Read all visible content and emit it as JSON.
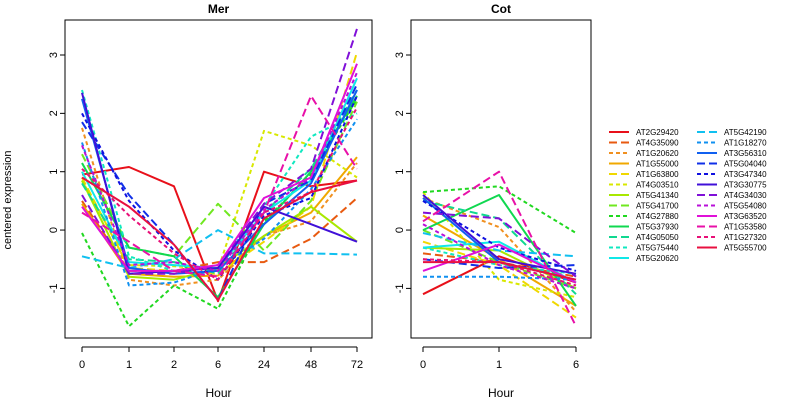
{
  "ylabel": "centered expression",
  "chart_data": [
    {
      "type": "line",
      "title": "Mer",
      "xlabel": "Hour",
      "ylabel": "centered expression",
      "categories": [
        "0",
        "1",
        "2",
        "6",
        "24",
        "48",
        "72"
      ],
      "ylim": [
        -1.85,
        3.6
      ],
      "yticks": [
        -1,
        0,
        1,
        2,
        3
      ],
      "series": [
        {
          "name": "AT2G29420",
          "values": [
            0.95,
            1.08,
            0.75,
            -1.22,
            1.0,
            0.75,
            0.85
          ]
        },
        {
          "name": "AT4G35090",
          "values": [
            0.5,
            -0.7,
            -0.7,
            -0.55,
            -0.55,
            -0.15,
            0.55
          ]
        },
        {
          "name": "AT1G20620",
          "values": [
            1.75,
            -0.85,
            -0.95,
            -0.85,
            -0.1,
            0.15,
            1.15
          ]
        },
        {
          "name": "AT1G55000",
          "values": [
            0.45,
            -0.75,
            -0.8,
            -0.78,
            -0.1,
            0.3,
            1.25
          ]
        },
        {
          "name": "AT1G63800",
          "values": [
            0.9,
            -0.65,
            -0.7,
            -0.75,
            -0.2,
            0.4,
            3.05
          ]
        },
        {
          "name": "AT4G03510",
          "values": [
            0.85,
            -0.6,
            -0.62,
            -0.68,
            1.7,
            1.45,
            0.9
          ]
        },
        {
          "name": "AT5G41340",
          "values": [
            0.85,
            -0.8,
            -0.85,
            -0.65,
            -0.1,
            0.4,
            -0.2
          ]
        },
        {
          "name": "AT5G41700",
          "values": [
            1.3,
            -0.3,
            -0.45,
            0.45,
            -0.35,
            0.5,
            2.2
          ]
        },
        {
          "name": "AT4G27880",
          "values": [
            -0.05,
            -1.65,
            -0.95,
            -1.35,
            0.15,
            0.95,
            2.25
          ]
        },
        {
          "name": "AT5G37930",
          "values": [
            1.15,
            -0.3,
            -0.45,
            -1.15,
            0.1,
            1.0,
            2.3
          ]
        },
        {
          "name": "AT4G05050",
          "values": [
            0.8,
            -0.5,
            -0.55,
            -0.75,
            0.3,
            1.05,
            2.4
          ]
        },
        {
          "name": "AT5G75440",
          "values": [
            2.4,
            -0.45,
            -0.7,
            -0.65,
            0.4,
            1.6,
            2.0
          ]
        },
        {
          "name": "AT5G20620",
          "values": [
            1.0,
            -0.55,
            -0.6,
            -0.65,
            0.3,
            0.85,
            2.6
          ]
        },
        {
          "name": "AT5G42190",
          "values": [
            -0.45,
            -0.65,
            -0.5,
            0.0,
            -0.4,
            -0.4,
            -0.42
          ]
        },
        {
          "name": "AT1G18270",
          "values": [
            1.5,
            -0.95,
            -0.9,
            -0.65,
            -0.15,
            0.7,
            1.9
          ]
        },
        {
          "name": "AT3G56310",
          "values": [
            2.25,
            -0.65,
            -0.75,
            -0.7,
            0.1,
            0.8,
            2.4
          ]
        },
        {
          "name": "AT5G04040",
          "values": [
            1.85,
            0.6,
            -0.25,
            -1.2,
            0.45,
            0.85,
            2.5
          ]
        },
        {
          "name": "AT3G47340",
          "values": [
            2.0,
            0.5,
            -0.35,
            -0.85,
            0.25,
            0.55,
            2.3
          ]
        },
        {
          "name": "AT3G30775",
          "values": [
            2.35,
            -0.75,
            -0.7,
            -0.65,
            0.4,
            0.1,
            -0.2
          ]
        },
        {
          "name": "AT4G34030",
          "values": [
            0.6,
            -0.75,
            -0.75,
            -0.6,
            0.45,
            1.05,
            3.45
          ]
        },
        {
          "name": "AT5G54080",
          "values": [
            1.45,
            -0.6,
            -0.55,
            -0.7,
            0.35,
            0.9,
            2.7
          ]
        },
        {
          "name": "AT3G63520",
          "values": [
            0.4,
            -0.7,
            -0.7,
            -0.6,
            0.55,
            0.9,
            2.85
          ]
        },
        {
          "name": "AT1G53580",
          "values": [
            0.3,
            -0.2,
            -0.7,
            -0.8,
            0.3,
            2.3,
            1.05
          ]
        },
        {
          "name": "AT1G27320",
          "values": [
            1.05,
            0.25,
            -0.4,
            -0.85,
            0.3,
            0.65,
            2.1
          ]
        },
        {
          "name": "AT5G55700",
          "values": [
            0.9,
            0.4,
            -0.25,
            -1.2,
            0.2,
            0.65,
            0.85
          ]
        }
      ]
    },
    {
      "type": "line",
      "title": "Cot",
      "xlabel": "Hour",
      "categories": [
        "0",
        "1",
        "6"
      ],
      "ylim": [
        -1.85,
        3.6
      ],
      "yticks": [
        -1,
        0,
        1,
        2,
        3
      ],
      "series": [
        {
          "name": "AT2G29420",
          "values": [
            -1.1,
            -0.45,
            -0.9
          ]
        },
        {
          "name": "AT4G35090",
          "values": [
            -0.4,
            -0.55,
            -0.8
          ]
        },
        {
          "name": "AT1G20620",
          "values": [
            0.55,
            0.05,
            -1.4
          ]
        },
        {
          "name": "AT1G55000",
          "values": [
            0.25,
            -0.5,
            -1.3
          ]
        },
        {
          "name": "AT1G63800",
          "values": [
            -0.2,
            -0.6,
            -1.5
          ]
        },
        {
          "name": "AT4G03510",
          "values": [
            0.65,
            -0.85,
            -1.15
          ]
        },
        {
          "name": "AT5G41340",
          "values": [
            -0.3,
            -0.35,
            -1.0
          ]
        },
        {
          "name": "AT5G41700",
          "values": [
            0.0,
            -0.55,
            -1.0
          ]
        },
        {
          "name": "AT4G27880",
          "values": [
            0.65,
            0.75,
            -0.05
          ]
        },
        {
          "name": "AT5G37930",
          "values": [
            0.0,
            0.6,
            -1.3
          ]
        },
        {
          "name": "AT4G05050",
          "values": [
            0.5,
            0.2,
            -1.1
          ]
        },
        {
          "name": "AT5G75440",
          "values": [
            -0.3,
            -0.6,
            -0.75
          ]
        },
        {
          "name": "AT5G20620",
          "values": [
            -0.3,
            -0.2,
            -0.9
          ]
        },
        {
          "name": "AT5G42190",
          "values": [
            -0.05,
            -0.35,
            -0.45
          ]
        },
        {
          "name": "AT1G18270",
          "values": [
            -0.8,
            -0.8,
            -0.85
          ]
        },
        {
          "name": "AT3G56310",
          "values": [
            0.55,
            -0.55,
            -0.85
          ]
        },
        {
          "name": "AT5G04040",
          "values": [
            -0.5,
            -0.65,
            -0.6
          ]
        },
        {
          "name": "AT3G47340",
          "values": [
            0.5,
            -0.3,
            -0.7
          ]
        },
        {
          "name": "AT3G30775",
          "values": [
            0.6,
            -0.5,
            -0.75
          ]
        },
        {
          "name": "AT4G34030",
          "values": [
            0.3,
            0.2,
            -0.8
          ]
        },
        {
          "name": "AT5G54080",
          "values": [
            0.1,
            -0.6,
            -1.0
          ]
        },
        {
          "name": "AT3G63520",
          "values": [
            -0.7,
            -0.25,
            -0.9
          ]
        },
        {
          "name": "AT1G53580",
          "values": [
            0.15,
            1.0,
            -1.65
          ]
        },
        {
          "name": "AT1G27320",
          "values": [
            -0.5,
            -0.55,
            -0.95
          ]
        },
        {
          "name": "AT5G55700",
          "values": [
            -0.55,
            -0.55,
            -0.85
          ]
        }
      ]
    }
  ],
  "legend": {
    "placement": "right",
    "columns": 2,
    "entries": [
      {
        "name": "AT2G29420",
        "color": "#e8101a",
        "dash": "solid"
      },
      {
        "name": "AT4G35090",
        "color": "#e85a10",
        "dash": "longdash"
      },
      {
        "name": "AT1G20620",
        "color": "#f09020",
        "dash": "dashed"
      },
      {
        "name": "AT1G55000",
        "color": "#f0a800",
        "dash": "solid"
      },
      {
        "name": "AT1G63800",
        "color": "#f0d800",
        "dash": "longdash"
      },
      {
        "name": "AT4G03510",
        "color": "#d8e800",
        "dash": "dashed"
      },
      {
        "name": "AT5G41340",
        "color": "#a8e800",
        "dash": "solid"
      },
      {
        "name": "AT5G41700",
        "color": "#70e820",
        "dash": "longdash"
      },
      {
        "name": "AT4G27880",
        "color": "#20d820",
        "dash": "dashed"
      },
      {
        "name": "AT5G37930",
        "color": "#10d850",
        "dash": "solid"
      },
      {
        "name": "AT4G05050",
        "color": "#10d890",
        "dash": "longdash"
      },
      {
        "name": "AT5G75440",
        "color": "#10e8c0",
        "dash": "dashed"
      },
      {
        "name": "AT5G20620",
        "color": "#10e8e8",
        "dash": "solid"
      },
      {
        "name": "AT5G42190",
        "color": "#10c0f0",
        "dash": "longdash"
      },
      {
        "name": "AT1G18270",
        "color": "#1090f0",
        "dash": "dashed"
      },
      {
        "name": "AT3G56310",
        "color": "#1060f0",
        "dash": "solid"
      },
      {
        "name": "AT5G04040",
        "color": "#1030e8",
        "dash": "longdash"
      },
      {
        "name": "AT3G47340",
        "color": "#1010e0",
        "dash": "dashed"
      },
      {
        "name": "AT3G30775",
        "color": "#4010d8",
        "dash": "solid"
      },
      {
        "name": "AT4G34030",
        "color": "#8010d8",
        "dash": "longdash"
      },
      {
        "name": "AT5G54080",
        "color": "#b810d8",
        "dash": "dashed"
      },
      {
        "name": "AT3G63520",
        "color": "#e010d8",
        "dash": "solid"
      },
      {
        "name": "AT1G53580",
        "color": "#e810a8",
        "dash": "longdash"
      },
      {
        "name": "AT1G27320",
        "color": "#e81078",
        "dash": "dashed"
      },
      {
        "name": "AT5G55700",
        "color": "#e81040",
        "dash": "solid"
      }
    ]
  }
}
